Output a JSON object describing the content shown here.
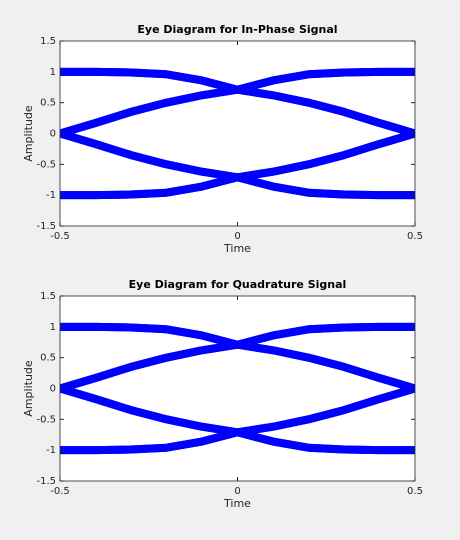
{
  "chart_data": [
    {
      "type": "line",
      "title": "Eye Diagram for In-Phase Signal",
      "xlabel": "Time",
      "ylabel": "Amplitude",
      "x": [
        -0.5,
        -0.4,
        -0.3,
        -0.2,
        -0.1,
        0,
        0.1,
        0.2,
        0.3,
        0.4,
        0.5
      ],
      "series": [
        {
          "color": "#0000ff",
          "values": [
            1,
            1,
            0.99,
            0.96,
            0.86,
            0.71,
            0.86,
            0.96,
            0.99,
            1,
            1
          ]
        },
        {
          "color": "#0000ff",
          "values": [
            1,
            1,
            0.99,
            0.96,
            0.86,
            0.71,
            0.62,
            0.5,
            0.35,
            0.17,
            0
          ]
        },
        {
          "color": "#0000ff",
          "values": [
            0,
            0.17,
            0.35,
            0.5,
            0.62,
            0.71,
            0.86,
            0.96,
            0.99,
            1,
            1
          ]
        },
        {
          "color": "#0000ff",
          "values": [
            0,
            0.17,
            0.35,
            0.5,
            0.62,
            0.71,
            0.62,
            0.5,
            0.35,
            0.17,
            0
          ]
        },
        {
          "color": "#0000ff",
          "values": [
            -1,
            -1,
            -0.99,
            -0.96,
            -0.86,
            -0.71,
            -0.86,
            -0.96,
            -0.99,
            -1,
            -1
          ]
        },
        {
          "color": "#0000ff",
          "values": [
            -1,
            -1,
            -0.99,
            -0.96,
            -0.86,
            -0.71,
            -0.62,
            -0.5,
            -0.35,
            -0.17,
            0
          ]
        },
        {
          "color": "#0000ff",
          "values": [
            0,
            -0.17,
            -0.35,
            -0.5,
            -0.62,
            -0.71,
            -0.86,
            -0.96,
            -0.99,
            -1,
            -1
          ]
        },
        {
          "color": "#0000ff",
          "values": [
            0,
            -0.17,
            -0.35,
            -0.5,
            -0.62,
            -0.71,
            -0.62,
            -0.5,
            -0.35,
            -0.17,
            0
          ]
        }
      ],
      "xlim": [
        -0.5,
        0.5
      ],
      "xticks": [
        -0.5,
        0,
        0.5
      ],
      "ylim": [
        -1.5,
        1.5
      ],
      "yticks": [
        -1.5,
        -1,
        -0.5,
        0,
        0.5,
        1,
        1.5
      ],
      "grid": false
    },
    {
      "type": "line",
      "title": "Eye Diagram for Quadrature Signal",
      "xlabel": "Time",
      "ylabel": "Amplitude",
      "x": [
        -0.5,
        -0.4,
        -0.3,
        -0.2,
        -0.1,
        0,
        0.1,
        0.2,
        0.3,
        0.4,
        0.5
      ],
      "series": [
        {
          "color": "#0000ff",
          "values": [
            1,
            1,
            0.99,
            0.96,
            0.86,
            0.71,
            0.86,
            0.96,
            0.99,
            1,
            1
          ]
        },
        {
          "color": "#0000ff",
          "values": [
            1,
            1,
            0.99,
            0.96,
            0.86,
            0.71,
            0.62,
            0.5,
            0.35,
            0.17,
            0
          ]
        },
        {
          "color": "#0000ff",
          "values": [
            0,
            0.17,
            0.35,
            0.5,
            0.62,
            0.71,
            0.86,
            0.96,
            0.99,
            1,
            1
          ]
        },
        {
          "color": "#0000ff",
          "values": [
            0,
            0.17,
            0.35,
            0.5,
            0.62,
            0.71,
            0.62,
            0.5,
            0.35,
            0.17,
            0
          ]
        },
        {
          "color": "#0000ff",
          "values": [
            -1,
            -1,
            -0.99,
            -0.96,
            -0.86,
            -0.71,
            -0.86,
            -0.96,
            -0.99,
            -1,
            -1
          ]
        },
        {
          "color": "#0000ff",
          "values": [
            -1,
            -1,
            -0.99,
            -0.96,
            -0.86,
            -0.71,
            -0.62,
            -0.5,
            -0.35,
            -0.17,
            0
          ]
        },
        {
          "color": "#0000ff",
          "values": [
            0,
            -0.17,
            -0.35,
            -0.5,
            -0.62,
            -0.71,
            -0.86,
            -0.96,
            -0.99,
            -1,
            -1
          ]
        },
        {
          "color": "#0000ff",
          "values": [
            0,
            -0.17,
            -0.35,
            -0.5,
            -0.62,
            -0.71,
            -0.62,
            -0.5,
            -0.35,
            -0.17,
            0
          ]
        }
      ],
      "xlim": [
        -0.5,
        0.5
      ],
      "xticks": [
        -0.5,
        0,
        0.5
      ],
      "ylim": [
        -1.5,
        1.5
      ],
      "yticks": [
        -1.5,
        -1,
        -0.5,
        0,
        0.5,
        1,
        1.5
      ],
      "grid": false
    }
  ]
}
